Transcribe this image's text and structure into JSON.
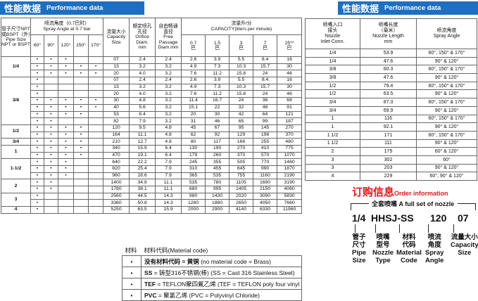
{
  "left_header": {
    "title_cn": "性能数据",
    "title_en": "Performance data"
  },
  "main_table": {
    "headers": {
      "pipe_size": [
        "管子尺寸NPT",
        "或BSPT（外）",
        "Pipe Size",
        "NPT or BSPT (M)"
      ],
      "spray_angle": [
        "喷流角度（0.7巴时）",
        "Spray Angle at 0.7 bar"
      ],
      "angles": [
        "60°",
        "90°",
        "120°",
        "150°",
        "170°"
      ],
      "capacity_size": [
        "流量大小",
        "Capacity",
        "Size"
      ],
      "orifice": [
        "额定喷孔",
        "孔径",
        "Orifice",
        "Diam.",
        "mm"
      ],
      "passage": [
        "自由畅通",
        "直径",
        "Free",
        "Passage",
        "Diam.mm"
      ],
      "capacity": [
        "流量升/分",
        "CAPACITY(liters per minute)"
      ],
      "pressures": [
        [
          "0.7",
          "巴"
        ],
        [
          "1.5",
          "巴"
        ],
        [
          "3",
          "巴"
        ],
        [
          "7",
          "巴"
        ],
        [
          "25**",
          "巴"
        ]
      ]
    },
    "groups": [
      {
        "pipe": "1/4",
        "rows": [
          {
            "angles": [
              "•",
              "•",
              "•",
              null,
              null
            ],
            "size": "07",
            "orifice": "2.4",
            "passage": "2.4",
            "capacity": [
              "2.6",
              "3.9",
              "5.5",
              "8.4",
              "16"
            ]
          },
          {
            "angles": [
              "•",
              "•",
              "•",
              "•",
              "•"
            ],
            "size": "13",
            "orifice": "3.2",
            "passage": "3.2",
            "capacity": [
              "4.9",
              "7.3",
              "10.3",
              "15.7",
              "30"
            ]
          },
          {
            "angles": [
              "•",
              "•",
              "•",
              "•",
              "•"
            ],
            "size": "20",
            "orifice": "4.0",
            "passage": "3.2",
            "capacity": [
              "7.6",
              "11.2",
              "15.8",
              "24",
              "46"
            ]
          }
        ]
      },
      {
        "pipe": "3/8",
        "rows": [
          {
            "angles": [
              "•",
              null,
              null,
              null,
              null
            ],
            "size": "07",
            "orifice": "2.4",
            "passage": "2.4",
            "capacity": [
              "2.6",
              "3.9",
              "5.5",
              "8.4",
              "16"
            ]
          },
          {
            "angles": [
              "•",
              null,
              null,
              null,
              null
            ],
            "size": "13",
            "orifice": "3.2",
            "passage": "3.2",
            "capacity": [
              "4.9",
              "7.3",
              "10.3",
              "15.7",
              "30"
            ]
          },
          {
            "angles": [
              "•",
              null,
              null,
              null,
              null
            ],
            "size": "20",
            "orifice": "4.0",
            "passage": "3.2",
            "capacity": [
              "7.6",
              "11.2",
              "15.8",
              "24",
              "46"
            ]
          },
          {
            "angles": [
              "•",
              "•",
              "•",
              "•",
              "•"
            ],
            "size": "30",
            "orifice": "4.8",
            "passage": "3.2",
            "capacity": [
              "11.4",
              "16.7",
              "24",
              "36",
              "68"
            ]
          },
          {
            "angles": [
              "•",
              "•",
              "•",
              "•",
              "•"
            ],
            "size": "40",
            "orifice": "5.6",
            "passage": "3.2",
            "capacity": [
              "15.1",
              "22",
              "32",
              "48",
              "91"
            ]
          },
          {
            "angles": [
              "•",
              "•",
              "•",
              "•",
              null
            ],
            "size": "53",
            "orifice": "6.4",
            "passage": "3.2",
            "capacity": [
              "20",
              "30",
              "42",
              "64",
              "121"
            ]
          },
          {
            "angles": [
              "•",
              "•",
              null,
              null,
              null
            ],
            "size": "82",
            "orifice": "7.9",
            "passage": "3.2",
            "capacity": [
              "31",
              "46",
              "65",
              "99",
              "187"
            ]
          }
        ]
      },
      {
        "pipe": "1/2",
        "rows": [
          {
            "angles": [
              "•",
              "•",
              "•",
              "•",
              null
            ],
            "size": "120",
            "orifice": "9.5",
            "passage": "4.8",
            "capacity": [
              "45",
              "67",
              "95",
              "145",
              "270"
            ]
          },
          {
            "angles": [
              "•",
              "•",
              "•",
              "•",
              null
            ],
            "size": "164",
            "orifice": "11.1",
            "passage": "4.8",
            "capacity": [
              "62",
              "92",
              "129",
              "198",
              "370"
            ]
          }
        ]
      },
      {
        "pipe": "3/4",
        "rows": [
          {
            "angles": [
              "•",
              "•",
              "•",
              "•",
              null
            ],
            "size": "210",
            "orifice": "12.7",
            "passage": "4.8",
            "capacity": [
              "80",
              "117",
              "166",
              "255",
              "480"
            ]
          }
        ]
      },
      {
        "pipe": "1",
        "rows": [
          {
            "angles": [
              "•",
              "•",
              "•",
              "•",
              null
            ],
            "size": "340",
            "orifice": "15.9",
            "passage": "6.4",
            "capacity": [
              "130",
              "190",
              "270",
              "410",
              "775"
            ]
          },
          {
            "angles": [
              "•",
              "•",
              "•",
              "•",
              null
            ],
            "size": "470",
            "orifice": "19.1",
            "passage": "6.4",
            "capacity": [
              "179",
              "260",
              "370",
              "570",
              "1070"
            ]
          }
        ]
      },
      {
        "pipe": "1-1/2",
        "rows": [
          {
            "angles": [
              "•",
              "•",
              "•",
              null,
              null
            ],
            "size": "640",
            "orifice": "22.2",
            "passage": "7.9",
            "capacity": [
              "245",
              "355",
              "505",
              "770",
              "1460"
            ]
          },
          {
            "angles": [
              "•",
              "•",
              "•",
              null,
              null
            ],
            "size": "820",
            "orifice": "25.4",
            "passage": "7.9",
            "capacity": [
              "310",
              "455",
              "645",
              "990",
              "1870"
            ]
          },
          {
            "angles": [
              "•",
              "•",
              "•",
              null,
              null
            ],
            "size": "960",
            "orifice": "28.6",
            "passage": "7.9",
            "capacity": [
              "365",
              "535",
              "755",
              "1160",
              "2190"
            ]
          }
        ]
      },
      {
        "pipe": "2",
        "rows": [
          {
            "angles": [
              "•",
              "•",
              null,
              null,
              null
            ],
            "size": "1400",
            "orifice": "34.9",
            "passage": "11.1",
            "capacity": [
              "535",
              "780",
              "1105",
              "1690",
              "3190"
            ]
          },
          {
            "angles": [
              "•",
              "•",
              null,
              null,
              null
            ],
            "size": "1780",
            "orifice": "38.1",
            "passage": "11.1",
            "capacity": [
              "680",
              "995",
              "1405",
              "2150",
              "4060"
            ]
          }
        ]
      },
      {
        "pipe": "3",
        "rows": [
          {
            "angles": [
              "•",
              null,
              null,
              null,
              null
            ],
            "size": "2560",
            "orifice": "44.5",
            "passage": "14.3",
            "capacity": [
              "980",
              "1430",
              "2020",
              "3090",
              "5830"
            ]
          },
          {
            "angles": [
              "•",
              null,
              null,
              null,
              null
            ],
            "size": "3360",
            "orifice": "50.8",
            "passage": "14.3",
            "capacity": [
              "1280",
              "1880",
              "2650",
              "4050",
              "7660"
            ]
          }
        ]
      },
      {
        "pipe": "4",
        "rows": [
          {
            "angles": [
              "•",
              null,
              null,
              null,
              null
            ],
            "size": "5250",
            "orifice": "63.5",
            "passage": "15.9",
            "capacity": [
              "2000",
              "2900",
              "4140",
              "6330",
              "11960"
            ]
          }
        ]
      }
    ]
  },
  "material_table": {
    "header": [
      "材料",
      "材料代码(Material code)"
    ],
    "rows": [
      {
        "mark": "•",
        "code": "没有材料代码 = 黄铜",
        "text": " (no material code = Brass)"
      },
      {
        "mark": "•",
        "code": "SS",
        "text": " = 铸型316不锈钢(棒) (SS = Cast 316 Stainless Steel)"
      },
      {
        "mark": "•",
        "code": "TEF",
        "text": " = TEFLON聚四氟乙烯 (TEF = TEFLON poly four vinyl chloride)"
      },
      {
        "mark": "•",
        "code": "PVC",
        "text": " = 聚氯乙烯 (PVC = Polyvinyl Chloride)"
      }
    ]
  },
  "right_header": {
    "title_cn": "性能数据",
    "title_en": "Performance data"
  },
  "length_table": {
    "headers": [
      [
        "喷嘴入口",
        "接头",
        "Nozzle",
        "Inlet Conn."
      ],
      [
        "喷嘴长度",
        "（毫米）",
        "Nozzle Length",
        "mm"
      ],
      [
        "喷流角度",
        "Spray Angle"
      ]
    ],
    "rows": [
      [
        "1/4",
        "53.9",
        "60°, 150° & 170°"
      ],
      [
        "1/4",
        "47.6",
        "90° & 120°"
      ],
      [
        "3/8",
        "60.3",
        "60°, 150° & 170°"
      ],
      [
        "3/8",
        "47.6",
        "90° & 120°"
      ],
      [
        "1/2",
        "79.4",
        "60°, 150° & 170°"
      ],
      [
        "1/2",
        "63.5",
        "90° & 120°"
      ],
      [
        "3/4",
        "87.3",
        "60°, 150° & 170°"
      ],
      [
        "3/4",
        "69.9",
        "90° & 120°"
      ],
      [
        "1",
        "116",
        "60°, 150° & 170°"
      ],
      [
        "1",
        "92.1",
        "90° & 120°"
      ],
      [
        "1 1/2",
        "171",
        "60°, 150° & 170°"
      ],
      [
        "1 1/2",
        "111",
        "90° & 120°"
      ],
      [
        "2",
        "175",
        "60° & 120°"
      ],
      [
        "3",
        "302",
        "60°"
      ],
      [
        "3",
        "203",
        "90° & 120°"
      ],
      [
        "4",
        "229",
        "60°, 90° & 120°"
      ]
    ]
  },
  "order_info": {
    "title_cn": "订购信息",
    "title_en": "Order information",
    "set_cn": "全套喷嘴",
    "set_en": "A full set of nozzle",
    "code": [
      "1/4",
      "HHSJ-SS",
      "120",
      "07"
    ],
    "labels": [
      [
        "管子",
        "尺寸",
        "Pipe",
        "Size"
      ],
      [
        "喷嘴",
        "型号",
        "Nozzle",
        "Type"
      ],
      [
        "材料",
        "代码",
        "Material",
        "Code"
      ],
      [
        "喷流",
        "角度",
        "Spray",
        "Angle"
      ],
      [
        "流量大小",
        "Capacity",
        "Size"
      ]
    ]
  }
}
